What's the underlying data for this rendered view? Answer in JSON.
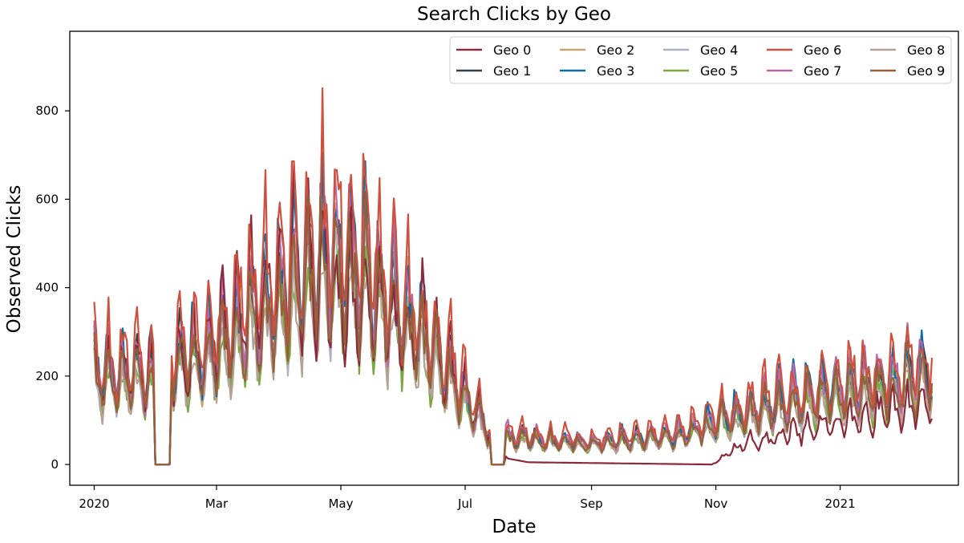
{
  "chart_data": {
    "type": "line",
    "title": "Search Clicks by Geo",
    "xlabel": "Date",
    "ylabel": "Observed Clicks",
    "x_start": "2020-01-01",
    "x_end": "2021-02-15",
    "xlim": [
      "2019-12-20",
      "2021-02-28"
    ],
    "ylim": [
      -47,
      980
    ],
    "x_ticks": [
      {
        "date": "2020-01-01",
        "label": "2020"
      },
      {
        "date": "2020-03-01",
        "label": "Mar"
      },
      {
        "date": "2020-05-01",
        "label": "May"
      },
      {
        "date": "2020-07-01",
        "label": "Jul"
      },
      {
        "date": "2020-09-01",
        "label": "Sep"
      },
      {
        "date": "2020-11-01",
        "label": "Nov"
      },
      {
        "date": "2021-01-01",
        "label": "2021"
      }
    ],
    "y_ticks": [
      0,
      200,
      400,
      600,
      800
    ],
    "grid": false,
    "legend_position": "top-right",
    "legend_columns": 5,
    "series": [
      {
        "name": "Geo 0",
        "color": "#8b2a3a",
        "scale": 0.82,
        "sep_oct_value": 0,
        "winter_scale": 0.45,
        "values": [
          [
            "2020-01-01",
            200
          ],
          [
            "2020-02-15",
            250
          ],
          [
            "2020-04-10",
            480
          ],
          [
            "2020-06-15",
            300
          ],
          [
            "2020-07-10",
            100
          ],
          [
            "2020-07-20",
            15
          ],
          [
            "2020-08-01",
            5
          ],
          [
            "2020-10-30",
            0
          ],
          [
            "2020-11-15",
            50
          ],
          [
            "2021-02-15",
            150
          ]
        ]
      },
      {
        "name": "Geo 1",
        "color": "#343e4e",
        "scale": 0.92,
        "values": []
      },
      {
        "name": "Geo 2",
        "color": "#c4a46f",
        "scale": 0.86,
        "values": []
      },
      {
        "name": "Geo 3",
        "color": "#0d6ba8",
        "scale": 1.0,
        "values": []
      },
      {
        "name": "Geo 4",
        "color": "#aeb0bf",
        "scale": 0.85,
        "values": []
      },
      {
        "name": "Geo 5",
        "color": "#79a843",
        "scale": 0.8,
        "values": []
      },
      {
        "name": "Geo 6",
        "color": "#cf513d",
        "scale": 1.12,
        "values": []
      },
      {
        "name": "Geo 7",
        "color": "#b868a8",
        "scale": 0.98,
        "values": []
      },
      {
        "name": "Geo 8",
        "color": "#b5a095",
        "scale": 0.78,
        "values": []
      },
      {
        "name": "Geo 9",
        "color": "#94603a",
        "scale": 0.88,
        "values": []
      }
    ],
    "base_curve": [
      [
        "2020-01-01",
        230
      ],
      [
        "2020-02-01",
        210
      ],
      [
        "2020-02-10",
        260
      ],
      [
        "2020-03-01",
        300
      ],
      [
        "2020-04-01",
        430
      ],
      [
        "2020-04-25",
        520
      ],
      [
        "2020-05-15",
        470
      ],
      [
        "2020-06-10",
        330
      ],
      [
        "2020-07-01",
        170
      ],
      [
        "2020-07-12",
        90
      ],
      [
        "2020-07-20",
        70
      ],
      [
        "2020-09-01",
        55
      ],
      [
        "2020-10-15",
        75
      ],
      [
        "2020-11-01",
        110
      ],
      [
        "2020-12-15",
        170
      ],
      [
        "2021-02-15",
        230
      ]
    ],
    "zero_gaps": [
      [
        "2020-01-31",
        "2020-02-07"
      ],
      [
        "2020-07-14",
        "2020-07-20"
      ]
    ]
  }
}
